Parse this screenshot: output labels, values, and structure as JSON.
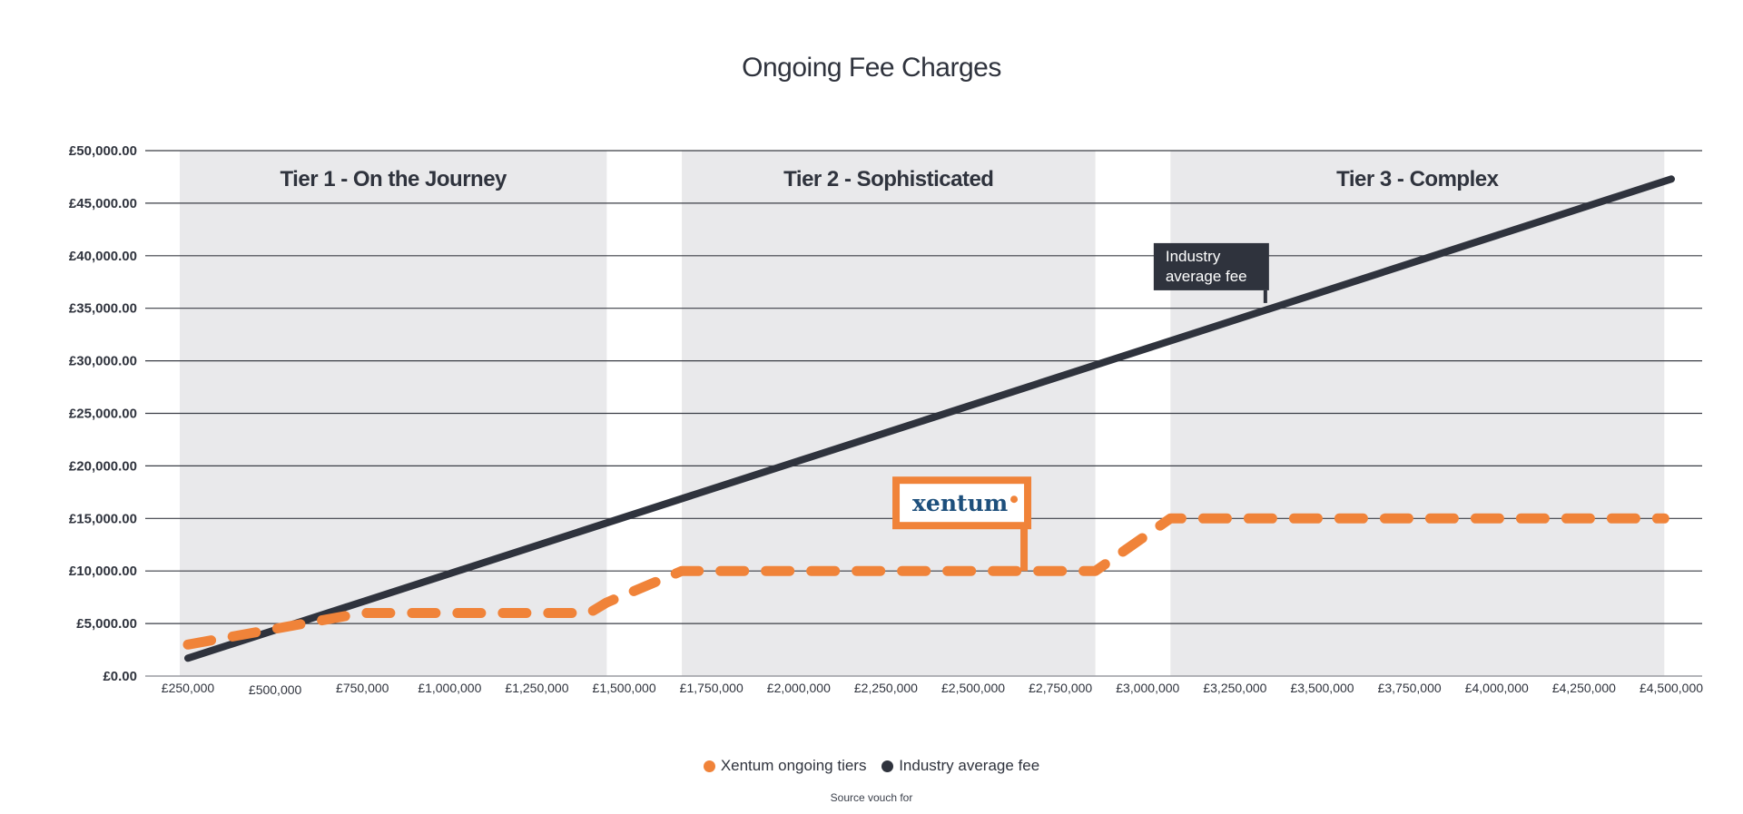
{
  "chart_data": {
    "type": "line",
    "title": "Ongoing Fee Charges",
    "xlabel": "",
    "ylabel": "",
    "xlim": [
      230000,
      4500000
    ],
    "ylim": [
      0,
      50000
    ],
    "x_ticks": [
      {
        "value": 250000,
        "label": "£250,000"
      },
      {
        "value": 500000,
        "label": "£500,000"
      },
      {
        "value": 750000,
        "label": "£750,000"
      },
      {
        "value": 1000000,
        "label": "£1,000,000"
      },
      {
        "value": 1250000,
        "label": "£1,250,000"
      },
      {
        "value": 1500000,
        "label": "£1,500,000"
      },
      {
        "value": 1750000,
        "label": "£1,750,000"
      },
      {
        "value": 2000000,
        "label": "£2,000,000"
      },
      {
        "value": 2250000,
        "label": "£2,250,000"
      },
      {
        "value": 2500000,
        "label": "£2,500,000"
      },
      {
        "value": 2750000,
        "label": "£2,750,000"
      },
      {
        "value": 3000000,
        "label": "£3,000,000"
      },
      {
        "value": 3250000,
        "label": "£3,250,000"
      },
      {
        "value": 3500000,
        "label": "£3,500,000"
      },
      {
        "value": 3750000,
        "label": "£3,750,000"
      },
      {
        "value": 4000000,
        "label": "£4,000,000"
      },
      {
        "value": 4250000,
        "label": "£4,250,000"
      },
      {
        "value": 4500000,
        "label": "£4,500,000"
      }
    ],
    "y_ticks": [
      {
        "value": 0,
        "label": "£0.00"
      },
      {
        "value": 5000,
        "label": "£5,000.00"
      },
      {
        "value": 10000,
        "label": "£10,000.00"
      },
      {
        "value": 15000,
        "label": "£15,000.00"
      },
      {
        "value": 20000,
        "label": "£20,000.00"
      },
      {
        "value": 25000,
        "label": "£25,000.00"
      },
      {
        "value": 30000,
        "label": "£30,000.00"
      },
      {
        "value": 35000,
        "label": "£35,000.00"
      },
      {
        "value": 40000,
        "label": "£40,000.00"
      },
      {
        "value": 45000,
        "label": "£45,000.00"
      },
      {
        "value": 50000,
        "label": "£50,000.00"
      }
    ],
    "grid": true,
    "legend_placement": "bottom-center",
    "tiers": [
      {
        "label": "Tier 1 - On the Journey",
        "x_start": 250000,
        "x_end": 1450000
      },
      {
        "label": "Tier 2 - Sophisticated",
        "x_start": 1665000,
        "x_end": 2850000
      },
      {
        "label": "Tier 3 - Complex",
        "x_start": 3065000,
        "x_end": 4480000
      }
    ],
    "series": [
      {
        "name": "Xentum ongoing tiers",
        "color": "#f08339",
        "style": "dashed",
        "points": [
          [
            250000,
            3000
          ],
          [
            750000,
            6000
          ],
          [
            1400000,
            6000
          ],
          [
            1450000,
            7000
          ],
          [
            1665000,
            10000
          ],
          [
            2850000,
            10000
          ],
          [
            3065000,
            15000
          ],
          [
            4480000,
            15000
          ]
        ]
      },
      {
        "name": "Industry average fee",
        "color": "#2f333d",
        "style": "solid",
        "points": [
          [
            250000,
            1700
          ],
          [
            4500000,
            47300
          ]
        ]
      }
    ],
    "annotations": [
      {
        "lines": [
          "Industry",
          "average fee"
        ],
        "x": 3350000,
        "y": 35500,
        "style": "dark-box"
      },
      {
        "logo_text": "xentum",
        "x": 2630000,
        "y": 10000,
        "style": "orange-box"
      }
    ]
  },
  "legend": {
    "items": [
      {
        "label": "Xentum ongoing tiers",
        "color": "#f08339"
      },
      {
        "label": "Industry average fee",
        "color": "#2f333d"
      }
    ]
  },
  "source_note": "Source vouch for"
}
